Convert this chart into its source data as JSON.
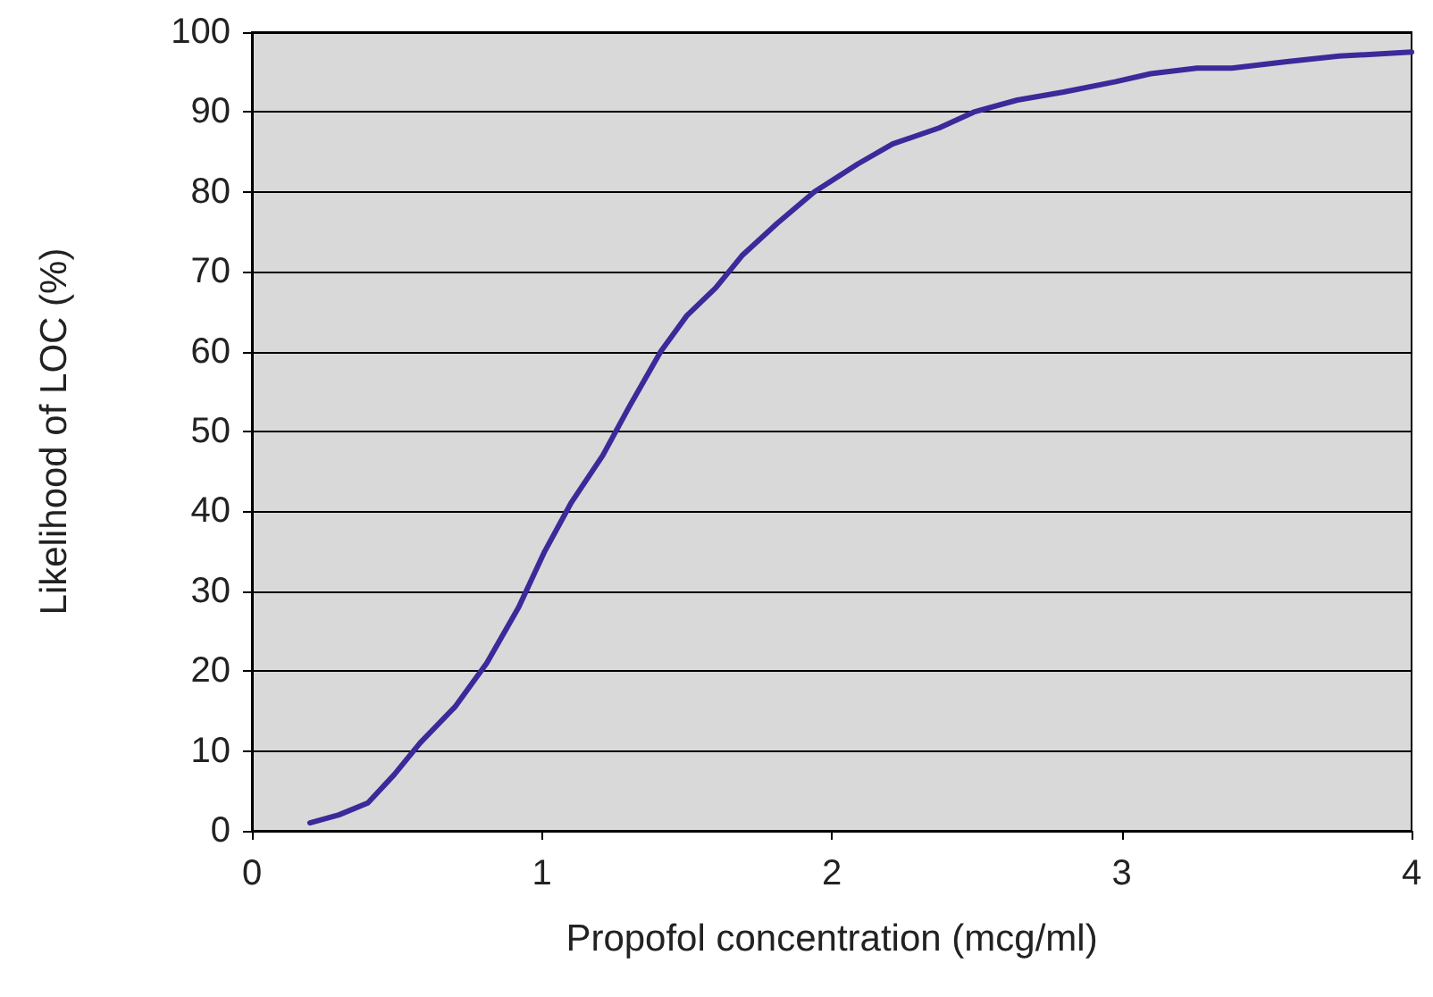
{
  "chart_data": {
    "type": "line",
    "xlabel": "Propofol concentration (mcg/ml)",
    "ylabel": "Likelihood of LOC (%)",
    "x": [
      0.2,
      0.3,
      0.4,
      0.49,
      0.58,
      0.7,
      0.81,
      0.92,
      1.01,
      1.1,
      1.21,
      1.3,
      1.41,
      1.5,
      1.6,
      1.69,
      1.81,
      1.94,
      2.09,
      2.21,
      2.37,
      2.49,
      2.64,
      2.8,
      2.98,
      3.1,
      3.26,
      3.38,
      3.57,
      3.75,
      4
    ],
    "series": [
      {
        "color": "#3a2a9a",
        "values": [
          1,
          2,
          3.5,
          7,
          11,
          15.5,
          21,
          28,
          35,
          41,
          47,
          53,
          60,
          64.5,
          68,
          72,
          76,
          80,
          83.5,
          86,
          88,
          90,
          91.5,
          92.5,
          93.8,
          94.8,
          95.5,
          95.5,
          96.3,
          97,
          97.5
        ]
      }
    ],
    "xlim": [
      0,
      4
    ],
    "xticks": [
      0,
      1,
      2,
      3,
      4
    ],
    "ylim": [
      0,
      100
    ],
    "yticks": [
      0,
      10,
      20,
      30,
      40,
      50,
      60,
      70,
      80,
      90,
      100
    ],
    "grid": "y",
    "marker": "none",
    "line_style": "solid"
  }
}
